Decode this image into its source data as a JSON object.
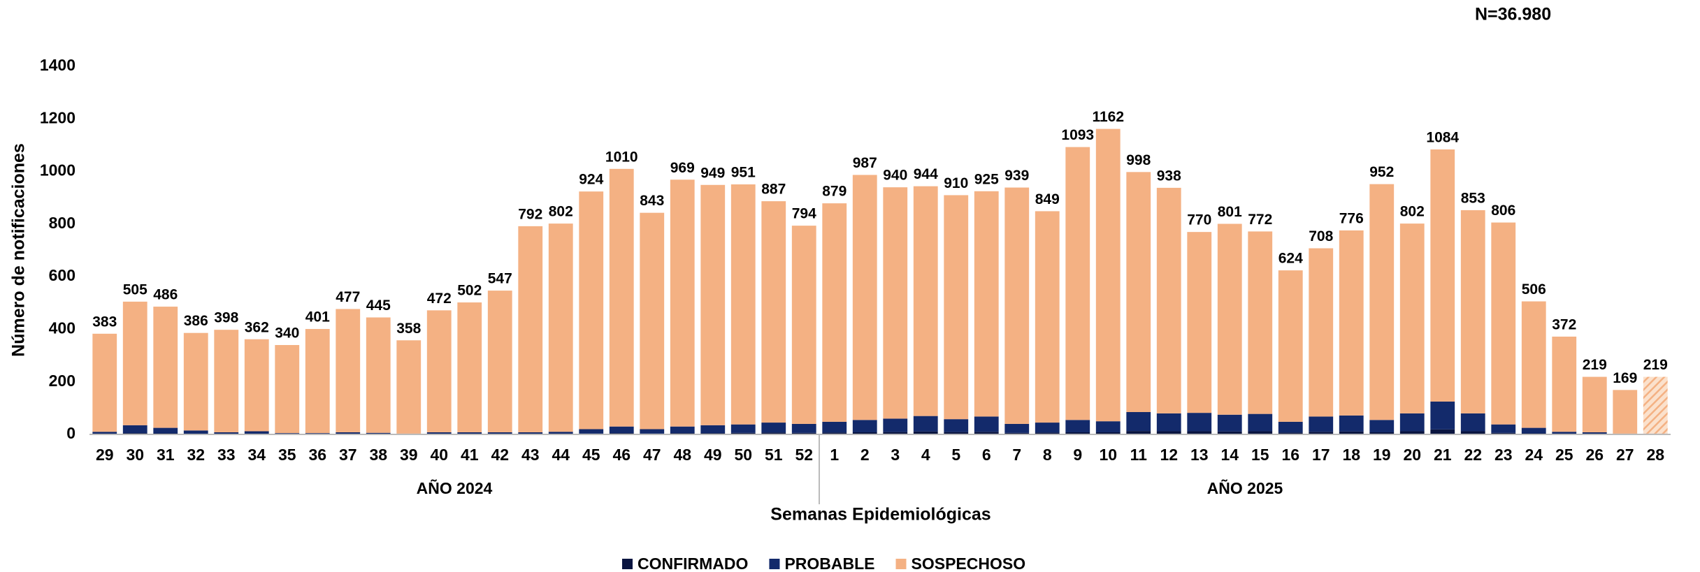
{
  "chart_data": {
    "type": "stacked_bar",
    "title": "N=36.980",
    "x_label": "Semanas Epidemiológicas",
    "y_label": "Número de notificaciones",
    "groups": [
      {
        "label": "AÑO 2024",
        "categories": [
          "29",
          "30",
          "31",
          "32",
          "33",
          "34",
          "35",
          "36",
          "37",
          "38",
          "39",
          "40",
          "41",
          "42",
          "43",
          "44",
          "45",
          "46",
          "47",
          "48",
          "49",
          "50",
          "51",
          "52"
        ]
      },
      {
        "label": "AÑO 2025",
        "categories": [
          "1",
          "2",
          "3",
          "4",
          "5",
          "6",
          "7",
          "8",
          "9",
          "10",
          "11",
          "12",
          "13",
          "14",
          "15",
          "16",
          "17",
          "18",
          "19",
          "20",
          "21",
          "22",
          "23",
          "24",
          "25",
          "26",
          "27",
          "28"
        ]
      }
    ],
    "series": [
      {
        "name": "CONFIRMADO",
        "color": "#0a1540",
        "values": [
          2,
          5,
          4,
          2,
          1,
          2,
          1,
          1,
          1,
          1,
          0,
          1,
          1,
          1,
          1,
          2,
          3,
          5,
          3,
          5,
          5,
          6,
          7,
          6,
          7,
          8,
          9,
          11,
          9,
          10,
          6,
          7,
          8,
          8,
          13,
          12,
          12,
          11,
          12,
          7,
          10,
          11,
          8,
          12,
          19,
          12,
          6,
          4,
          2,
          1,
          0,
          0
        ]
      },
      {
        "name": "PROBABLE",
        "color": "#132a6b",
        "values": [
          8,
          30,
          21,
          13,
          7,
          10,
          4,
          4,
          7,
          5,
          3,
          7,
          7,
          7,
          7,
          8,
          17,
          25,
          17,
          25,
          30,
          32,
          38,
          34,
          41,
          47,
          51,
          59,
          49,
          58,
          34,
          38,
          47,
          42,
          72,
          68,
          70,
          64,
          66,
          41,
          58,
          61,
          47,
          68,
          106,
          68,
          32,
          21,
          8,
          7,
          3,
          3
        ]
      },
      {
        "name": "SOSPECHOSO",
        "color": "#f4b183",
        "values": [
          373,
          470,
          461,
          371,
          390,
          350,
          335,
          396,
          469,
          439,
          355,
          464,
          494,
          539,
          784,
          792,
          904,
          980,
          823,
          939,
          914,
          913,
          842,
          754,
          831,
          932,
          880,
          874,
          852,
          857,
          899,
          804,
          1038,
          1112,
          913,
          858,
          688,
          726,
          694,
          576,
          640,
          704,
          897,
          722,
          959,
          773,
          768,
          481,
          362,
          211,
          166,
          216
        ]
      }
    ],
    "totals": [
      383,
      505,
      486,
      386,
      398,
      362,
      340,
      401,
      477,
      445,
      358,
      472,
      502,
      547,
      792,
      802,
      924,
      1010,
      843,
      969,
      949,
      951,
      887,
      794,
      879,
      987,
      940,
      944,
      910,
      925,
      939,
      849,
      1093,
      1162,
      998,
      938,
      770,
      801,
      772,
      624,
      708,
      776,
      952,
      802,
      1084,
      853,
      806,
      506,
      372,
      219,
      169,
      219
    ],
    "ylim": [
      0,
      1400
    ],
    "yticks": [
      0,
      200,
      400,
      600,
      800,
      1000,
      1200,
      1400
    ],
    "grid": false,
    "legend": "bottom"
  }
}
